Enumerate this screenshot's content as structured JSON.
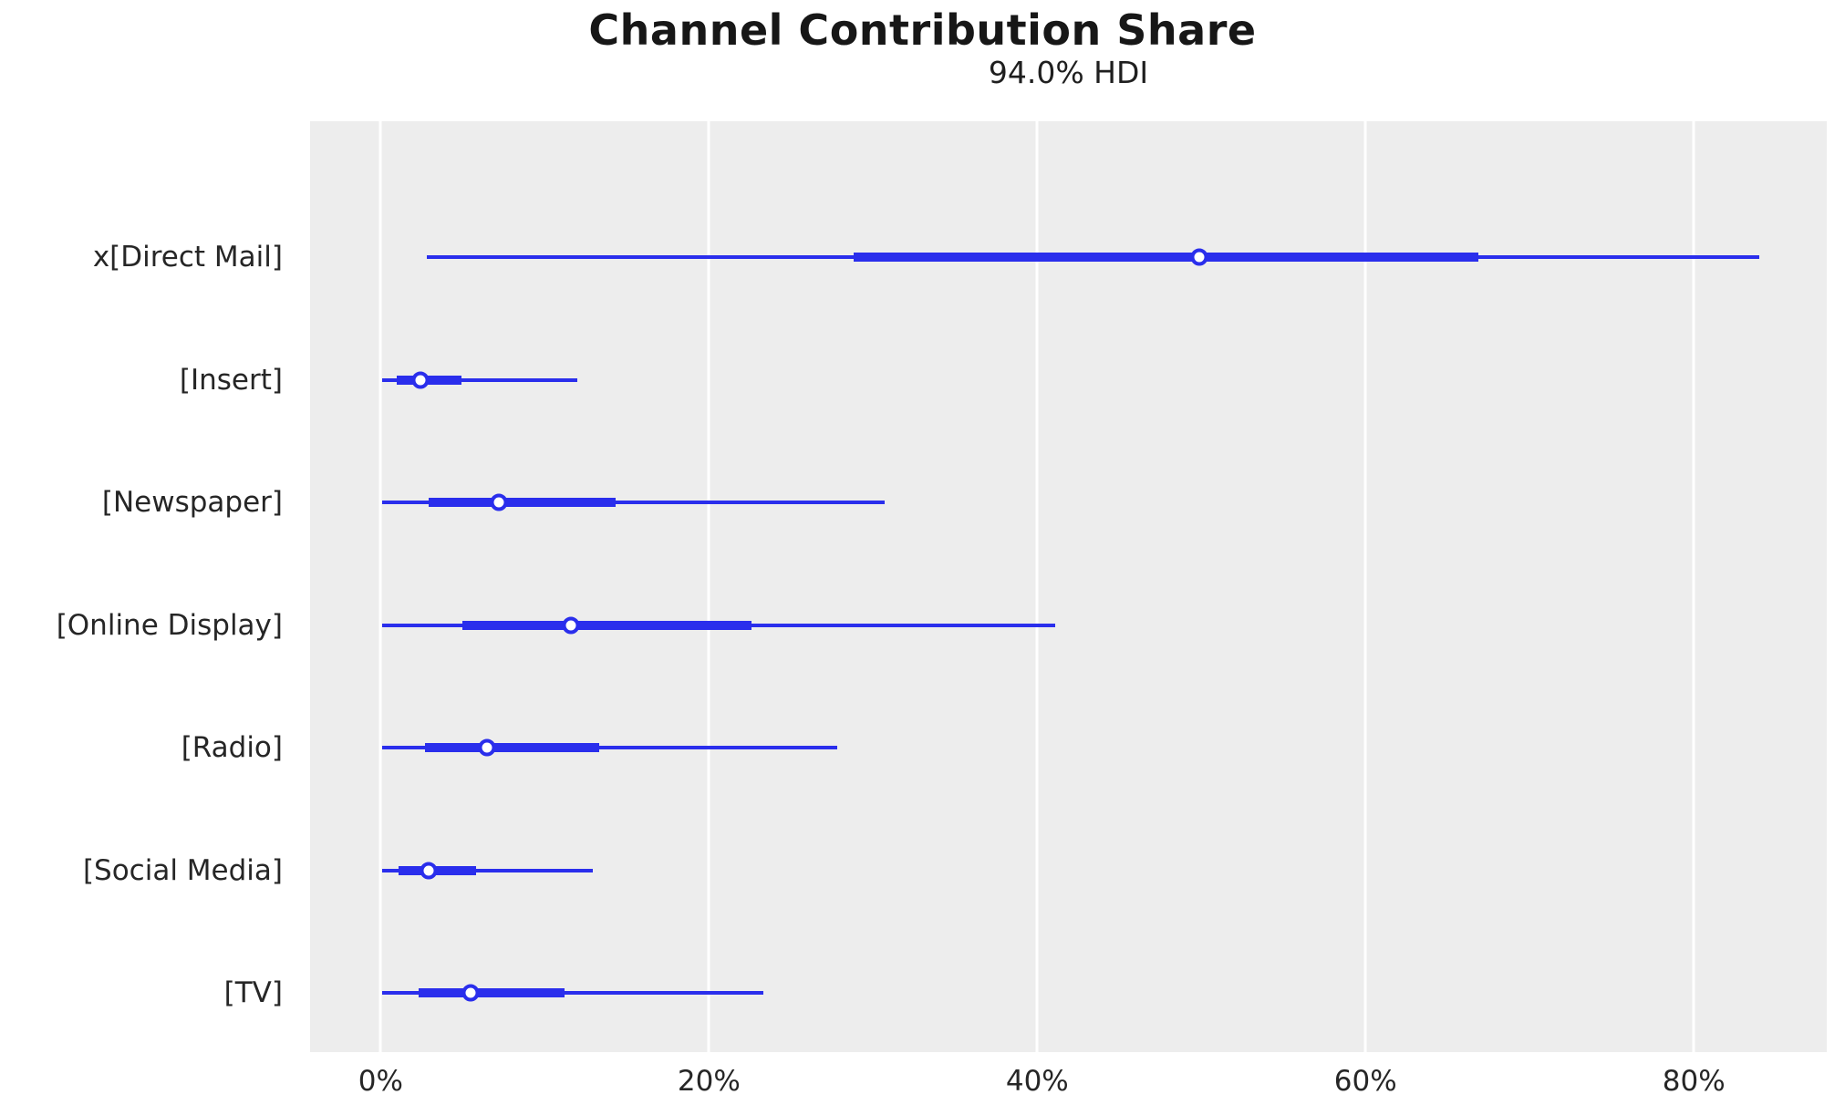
{
  "figure": {
    "title": "Channel Contribution Share",
    "subtitle": "94.0% HDI"
  },
  "colors": {
    "interval": "#2a2eec",
    "plot_background": "#ededed",
    "gridline": "#ffffff",
    "tick_text": "#262626",
    "title_text": "#171717"
  },
  "chart_data": {
    "type": "forest",
    "title": "Channel Contribution Share",
    "subtitle": "94.0% HDI",
    "hdi_probability": "94.0%",
    "xlabel": "",
    "ylabel": "",
    "grid": true,
    "xlim": [
      -4.3,
      88.1
    ],
    "x_ticks": [
      {
        "value": 0,
        "label": "0%"
      },
      {
        "value": 20,
        "label": "20%"
      },
      {
        "value": 40,
        "label": "40%"
      },
      {
        "value": 60,
        "label": "60%"
      },
      {
        "value": 80,
        "label": "80%"
      }
    ],
    "rows": [
      {
        "label": "x[Direct Mail]",
        "hdi_low": 2.8,
        "hdi_high": 84.0,
        "quartile_low": 28.8,
        "quartile_high": 66.9,
        "median": 49.9
      },
      {
        "label": "[Insert]",
        "hdi_low": 0.1,
        "hdi_high": 12.0,
        "quartile_low": 1.0,
        "quartile_high": 4.9,
        "median": 2.4
      },
      {
        "label": "[Newspaper]",
        "hdi_low": 0.1,
        "hdi_high": 30.7,
        "quartile_low": 2.9,
        "quartile_high": 14.3,
        "median": 7.2
      },
      {
        "label": "[Online Display]",
        "hdi_low": 0.1,
        "hdi_high": 41.1,
        "quartile_low": 5.0,
        "quartile_high": 22.6,
        "median": 11.6
      },
      {
        "label": "[Radio]",
        "hdi_low": 0.1,
        "hdi_high": 27.8,
        "quartile_low": 2.7,
        "quartile_high": 13.3,
        "median": 6.5
      },
      {
        "label": "[Social Media]",
        "hdi_low": 0.1,
        "hdi_high": 12.9,
        "quartile_low": 1.1,
        "quartile_high": 5.8,
        "median": 2.9
      },
      {
        "label": "[TV]",
        "hdi_low": 0.1,
        "hdi_high": 23.3,
        "quartile_low": 2.3,
        "quartile_high": 11.2,
        "median": 5.5
      }
    ],
    "layout": {
      "legend": false,
      "row_start_frac": 0.146,
      "row_step_frac": 0.1318
    }
  }
}
